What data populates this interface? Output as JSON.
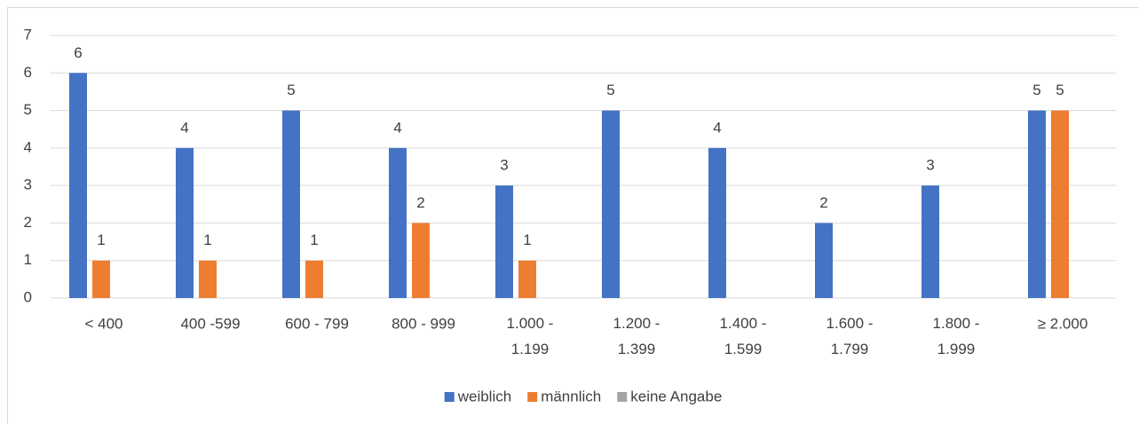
{
  "chart_data": {
    "type": "bar",
    "categories": [
      "< 400",
      "400 -599",
      "600 - 799",
      "800 - 999",
      "1.000 - 1.199",
      "1.200 - 1.399",
      "1.400 - 1.599",
      "1.600 - 1.799",
      "1.800 - 1.999",
      "≥ 2.000"
    ],
    "series": [
      {
        "name": "weiblich",
        "color": "#4472c4",
        "values": [
          6,
          4,
          5,
          4,
          3,
          5,
          4,
          2,
          3,
          5
        ]
      },
      {
        "name": "männlich",
        "color": "#ed7d31",
        "values": [
          1,
          1,
          1,
          2,
          1,
          null,
          null,
          null,
          null,
          5
        ]
      },
      {
        "name": "keine Angabe",
        "color": "#a5a5a5",
        "values": [
          null,
          null,
          null,
          null,
          null,
          null,
          null,
          null,
          null,
          null
        ]
      }
    ],
    "ylim": [
      0,
      7
    ],
    "yticks": [
      0,
      1,
      2,
      3,
      4,
      5,
      6,
      7
    ],
    "grid": true,
    "legend": "bottom"
  }
}
